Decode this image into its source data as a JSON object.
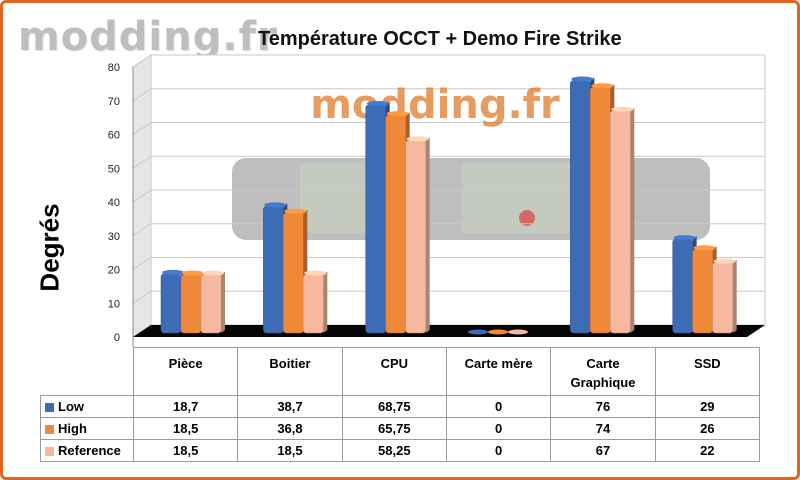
{
  "watermark": "modding.fr",
  "chart_data": {
    "type": "bar",
    "title": "Température OCCT + Demo Fire Strike",
    "ylabel": "Degrés",
    "ylim": [
      0,
      80
    ],
    "yticks": [
      0,
      10,
      20,
      30,
      40,
      50,
      60,
      70,
      80
    ],
    "categories": [
      "Pièce",
      "Boitier",
      "CPU",
      "Carte mère",
      "Carte\nGraphique",
      "SSD"
    ],
    "series": [
      {
        "name": "Low",
        "color": "#3d6bb5",
        "values": [
          18.7,
          38.7,
          68.75,
          0,
          76,
          29
        ],
        "labels": [
          "18,7",
          "38,7",
          "68,75",
          "0",
          "76",
          "29"
        ]
      },
      {
        "name": "High",
        "color": "#f0883a",
        "values": [
          18.5,
          36.8,
          65.75,
          0,
          74,
          26
        ],
        "labels": [
          "18,5",
          "36,8",
          "65,75",
          "0",
          "74",
          "26"
        ]
      },
      {
        "name": "Reference",
        "color": "#f6b9a0",
        "values": [
          18.5,
          18.5,
          58.25,
          0,
          67,
          22
        ],
        "labels": [
          "18,5",
          "18,5",
          "58,25",
          "0",
          "67",
          "22"
        ]
      }
    ],
    "grid": true,
    "legend": "data table"
  }
}
